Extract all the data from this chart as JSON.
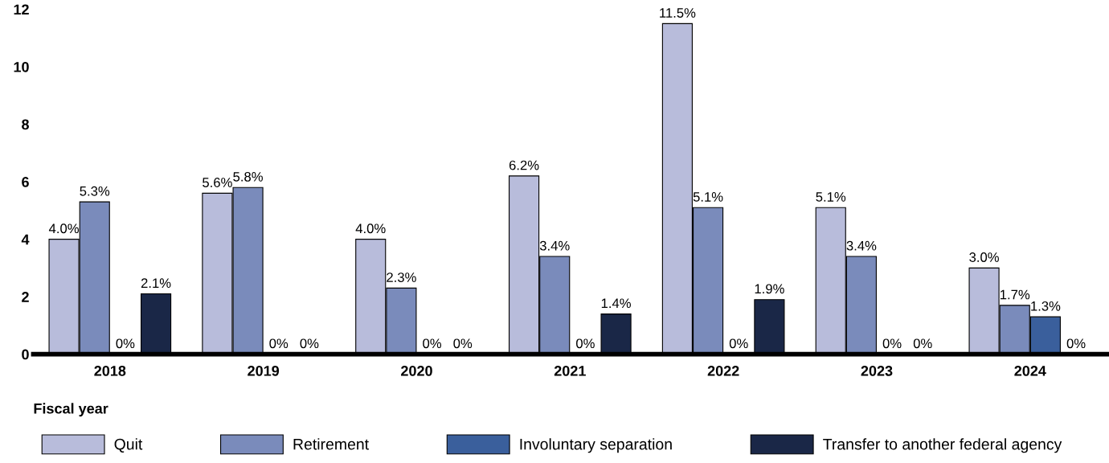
{
  "chart_data": {
    "type": "bar",
    "xlabel": "Fiscal year",
    "categories": [
      "2018",
      "2019",
      "2020",
      "2021",
      "2022",
      "2023",
      "2024"
    ],
    "series": [
      {
        "name": "Quit",
        "color": "#b8bcdb",
        "values": [
          4.0,
          5.6,
          4.0,
          6.2,
          11.5,
          5.1,
          3.0
        ],
        "value_labels": [
          "4.0%",
          "5.6%",
          "4.0%",
          "6.2%",
          "11.5%",
          "5.1%",
          "3.0%"
        ]
      },
      {
        "name": "Retirement",
        "color": "#7a8bbb",
        "values": [
          5.3,
          5.8,
          2.3,
          3.4,
          5.1,
          3.4,
          1.7
        ],
        "value_labels": [
          "5.3%",
          "5.8%",
          "2.3%",
          "3.4%",
          "5.1%",
          "3.4%",
          "1.7%"
        ]
      },
      {
        "name": "Involuntary separation",
        "color": "#3a5f9c",
        "values": [
          0,
          0,
          0,
          0,
          0,
          0,
          1.3
        ],
        "value_labels": [
          "0%",
          "0%",
          "0%",
          "0%",
          "0%",
          "0%",
          "1.3%"
        ]
      },
      {
        "name": "Transfer to another federal agency",
        "color": "#1a2747",
        "values": [
          2.1,
          0,
          0,
          1.4,
          1.9,
          0,
          0
        ],
        "value_labels": [
          "2.1%",
          "0%",
          "0%",
          "1.4%",
          "1.9%",
          "0%",
          "0%"
        ]
      }
    ],
    "ylim": [
      0,
      12
    ],
    "yticks": [
      0,
      2,
      4,
      6,
      8,
      10,
      12
    ],
    "grid": false,
    "legend": "bottom"
  }
}
